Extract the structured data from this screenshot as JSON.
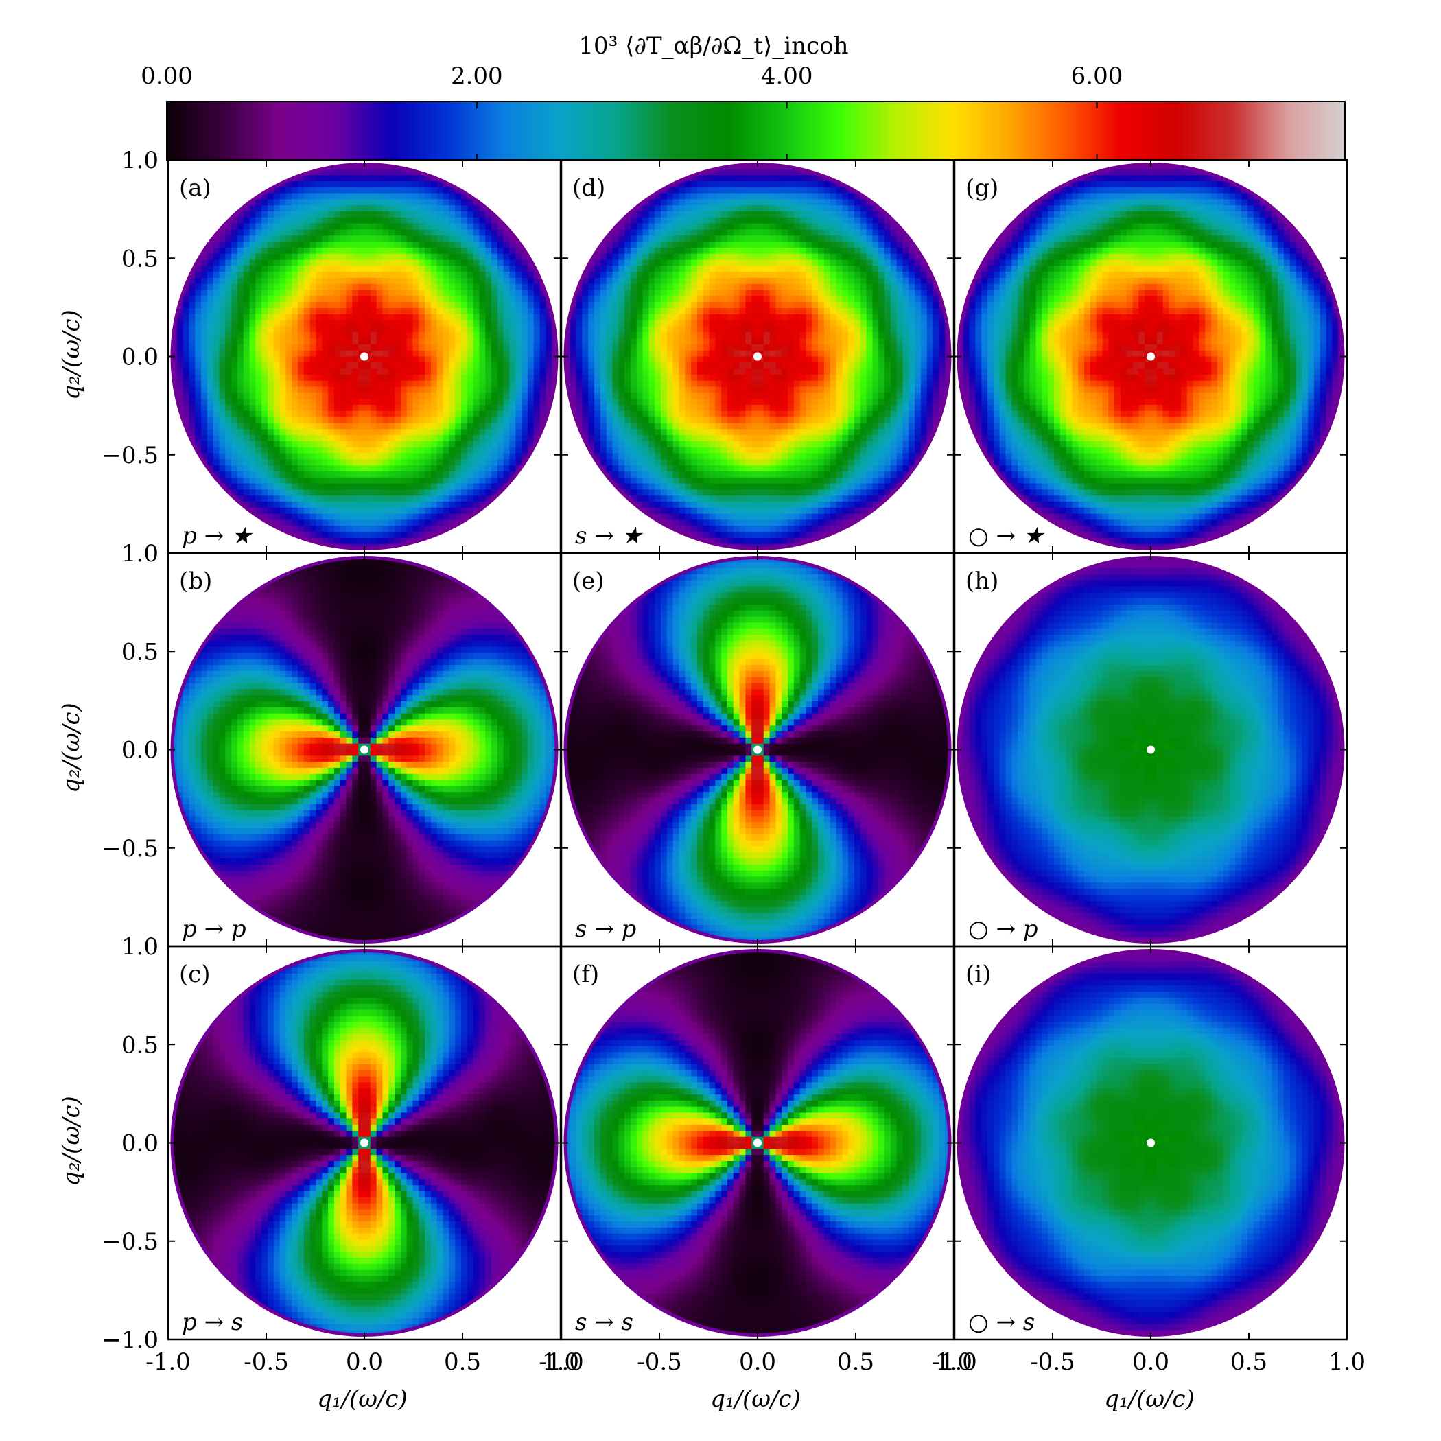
{
  "figure": {
    "colorbar": {
      "label": "10³ ⟨∂T_αβ/∂Ω_t⟩_incoh",
      "ticks": [
        "0.00",
        "2.00",
        "4.00",
        "6.00"
      ],
      "tick_values": [
        0,
        2,
        4,
        6
      ],
      "range": [
        0,
        7.6
      ],
      "stops": [
        "#0b0006",
        "#3a003e",
        "#7a008a",
        "#6b00a0",
        "#0b00b8",
        "#0033d6",
        "#0a7ee0",
        "#0aa2c8",
        "#07a58f",
        "#0a8f20",
        "#008a00",
        "#12c412",
        "#3cff05",
        "#b6f000",
        "#ffe000",
        "#ffa800",
        "#ff5a00",
        "#ee0000",
        "#d00000",
        "#cc3030",
        "#d9a0a0",
        "#d4d0d0"
      ]
    },
    "xlabel": "q₁/(ω/c)",
    "ylabel": "q₂/(ω/c)",
    "x_tick_labels": [
      "-1.0",
      "-0.5",
      "0.0",
      "0.5",
      "1.0"
    ],
    "y_tick_labels": [
      "1.0",
      "0.5",
      "0.0",
      "−0.5",
      "−1.0"
    ],
    "bottom_y_tick_label": "−1.0",
    "top_y_tick_label": "1.0"
  },
  "chart_data": [
    {
      "type": "heatmap",
      "panel": "(a)",
      "label": "p → ★",
      "pattern": "ring",
      "xlim": [
        -1,
        1
      ],
      "ylim": [
        -1,
        1
      ],
      "center_level": 6.6,
      "edge_level": 1.0
    },
    {
      "type": "heatmap",
      "panel": "(b)",
      "label": "p → p",
      "pattern": "lobes-horizontal",
      "xlim": [
        -1,
        1
      ],
      "ylim": [
        -1,
        1
      ],
      "peak_level": 6.8,
      "min_level": 0.1
    },
    {
      "type": "heatmap",
      "panel": "(c)",
      "label": "p → s",
      "pattern": "lobes-vertical",
      "xlim": [
        -1,
        1
      ],
      "ylim": [
        -1,
        1
      ],
      "peak_level": 6.8,
      "min_level": 0.1
    },
    {
      "type": "heatmap",
      "panel": "(d)",
      "label": "s → ★",
      "pattern": "ring",
      "xlim": [
        -1,
        1
      ],
      "ylim": [
        -1,
        1
      ],
      "center_level": 6.6,
      "edge_level": 1.0
    },
    {
      "type": "heatmap",
      "panel": "(e)",
      "label": "s → p",
      "pattern": "lobes-vertical",
      "xlim": [
        -1,
        1
      ],
      "ylim": [
        -1,
        1
      ],
      "peak_level": 6.8,
      "min_level": 0.1
    },
    {
      "type": "heatmap",
      "panel": "(f)",
      "label": "s → s",
      "pattern": "lobes-horizontal",
      "xlim": [
        -1,
        1
      ],
      "ylim": [
        -1,
        1
      ],
      "peak_level": 6.8,
      "min_level": 0.1
    },
    {
      "type": "heatmap",
      "panel": "(g)",
      "label": "○ → ★",
      "pattern": "ring",
      "xlim": [
        -1,
        1
      ],
      "ylim": [
        -1,
        1
      ],
      "center_level": 6.6,
      "edge_level": 1.0
    },
    {
      "type": "heatmap",
      "panel": "(h)",
      "label": "○ → p",
      "pattern": "ring",
      "xlim": [
        -1,
        1
      ],
      "ylim": [
        -1,
        1
      ],
      "center_level": 3.6,
      "edge_level": 1.0
    },
    {
      "type": "heatmap",
      "panel": "(i)",
      "label": "○ → s",
      "pattern": "ring",
      "xlim": [
        -1,
        1
      ],
      "ylim": [
        -1,
        1
      ],
      "center_level": 3.6,
      "edge_level": 1.0
    }
  ]
}
